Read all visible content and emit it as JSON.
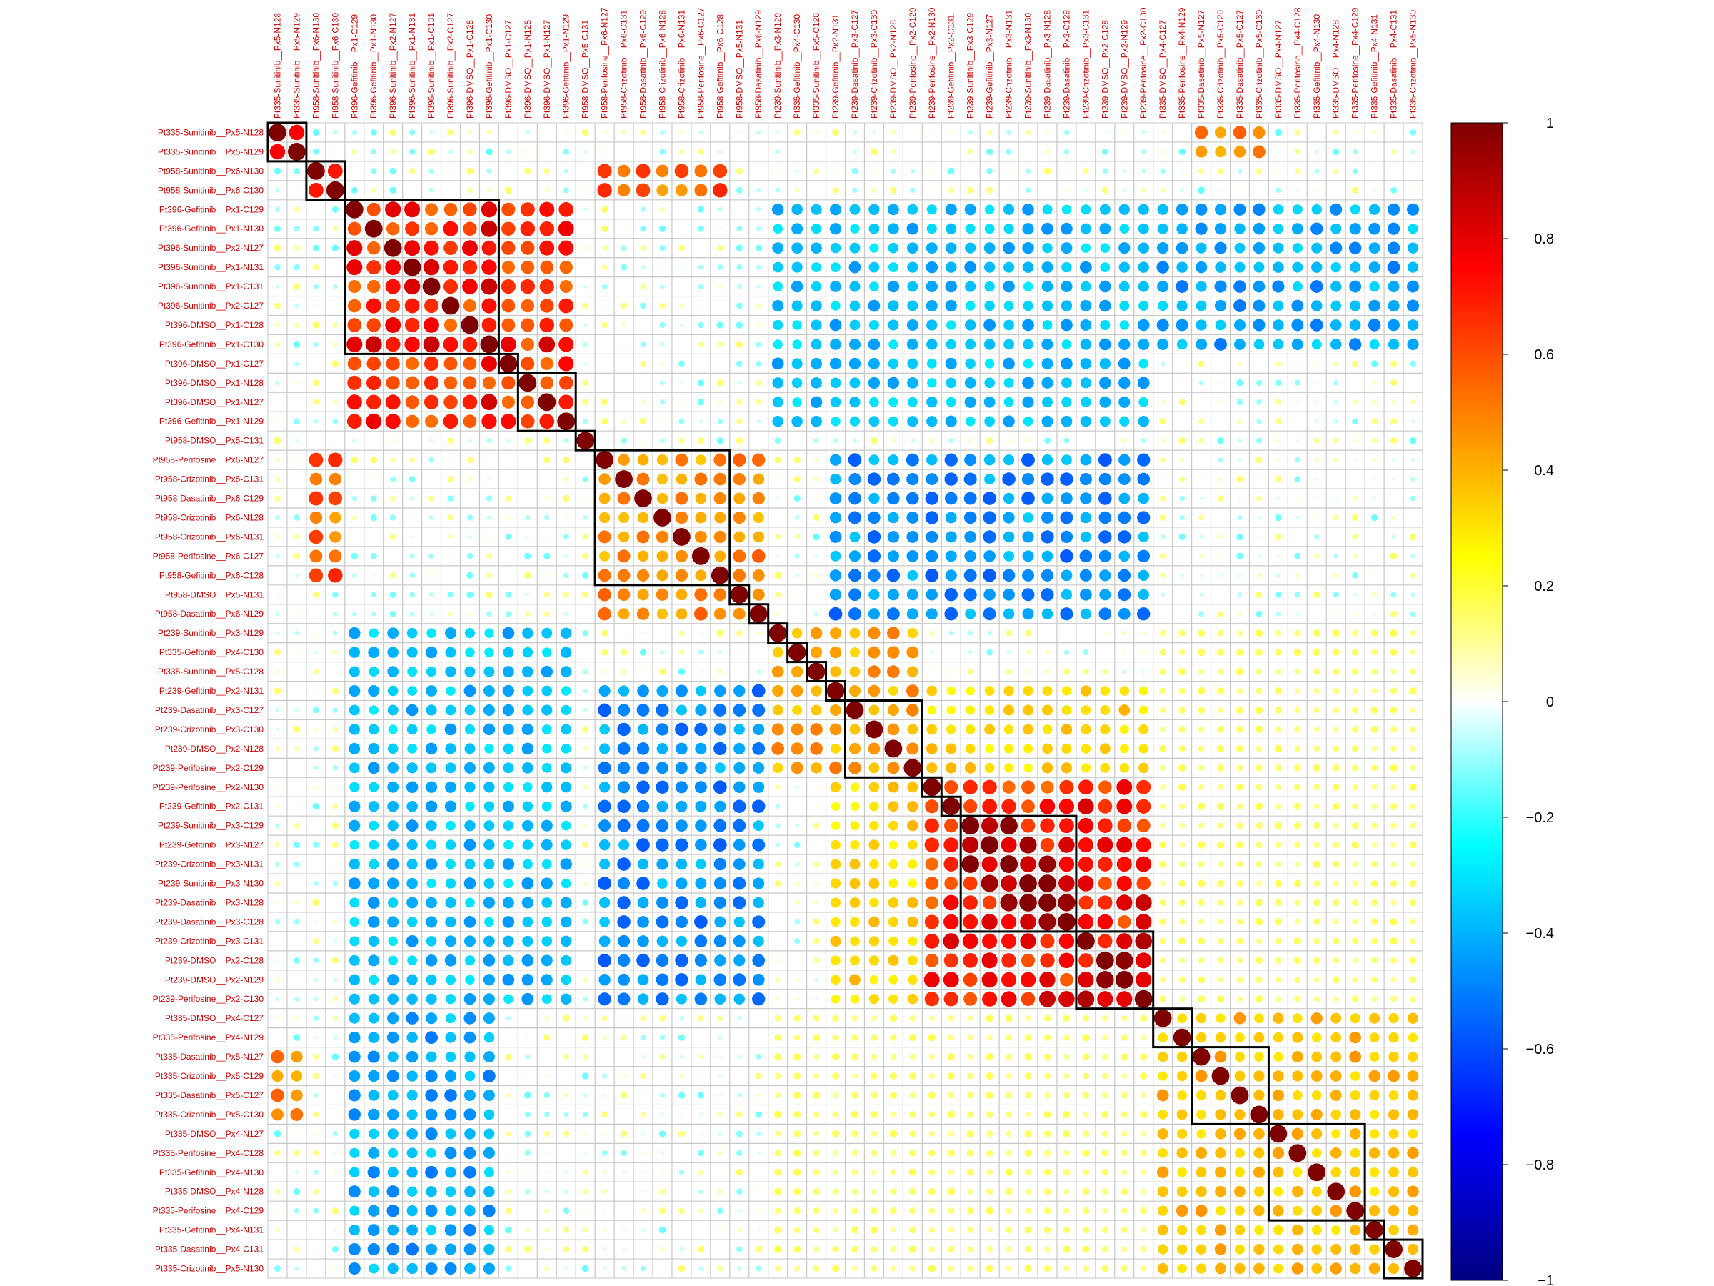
{
  "chart_data": {
    "type": "heatmap",
    "title": "",
    "labels": [
      "Pt335-Sunitinib__Px5-N128",
      "Pt335-Sunitinib__Px5-N129",
      "Pt958-Sunitinib__Px6-N130",
      "Pt958-Sunitinib__Px6-C130",
      "Pt396-Gefitinib__Px1-C129",
      "Pt396-Gefitinib__Px1-N130",
      "Pt396-Sunitinib__Px2-N127",
      "Pt396-Sunitinib__Px1-N131",
      "Pt396-Sunitinib__Px1-C131",
      "Pt396-Sunitinib__Px2-C127",
      "Pt396-DMSO__Px1-C128",
      "Pt396-Gefitinib__Px1-C130",
      "Pt396-DMSO__Px1-C127",
      "Pt396-DMSO__Px1-N128",
      "Pt396-DMSO__Px1-N127",
      "Pt396-Gefitinib__Px1-N129",
      "Pt958-DMSO__Px5-C131",
      "Pt958-Perifosine__Px6-N127",
      "Pt958-Crizotinib__Px6-C131",
      "Pt958-Dasatinib__Px6-C129",
      "Pt958-Crizotinib__Px6-N128",
      "Pt958-Crizotinib__Px6-N131",
      "Pt958-Perifosine__Px6-C127",
      "Pt958-Gefitinib__Px6-C128",
      "Pt958-DMSO__Px5-N131",
      "Pt958-Dasatinib__Px6-N129",
      "Pt239-Sunitinib__Px3-N129",
      "Pt335-Gefitinib__Px4-C130",
      "Pt335-Sunitinib__Px5-C128",
      "Pt239-Gefitinib__Px2-N131",
      "Pt239-Dasatinib__Px3-C127",
      "Pt239-Crizotinib__Px3-C130",
      "Pt239-DMSO__Px2-N128",
      "Pt239-Perifosine__Px2-C129",
      "Pt239-Perifosine__Px2-N130",
      "Pt239-Gefitinib__Px2-C131",
      "Pt239-Sunitinib__Px3-C129",
      "Pt239-Gefitinib__Px3-N127",
      "Pt239-Crizotinib__Px3-N131",
      "Pt239-Sunitinib__Px3-N130",
      "Pt239-Dasatinib__Px3-N128",
      "Pt239-Dasatinib__Px3-C128",
      "Pt239-Crizotinib__Px3-C131",
      "Pt239-DMSO__Px2-C128",
      "Pt239-DMSO__Px2-N129",
      "Pt239-Perifosine__Px2-C130",
      "Pt335-DMSO__Px4-C127",
      "Pt335-Perifosine__Px4-N129",
      "Pt335-Dasatinib__Px5-N127",
      "Pt335-Crizotinib__Px5-C129",
      "Pt335-Dasatinib__Px5-C127",
      "Pt335-Crizotinib__Px5-C130",
      "Pt335-DMSO__Px4-N127",
      "Pt335-Perifosine__Px4-C128",
      "Pt335-Gefitinib__Px4-N130",
      "Pt335-DMSO__Px4-N128",
      "Pt335-Perifosine__Px4-C129",
      "Pt335-Gefitinib__Px4-N131",
      "Pt335-Dasatinib__Px4-C131",
      "Pt335-Crizotinib__Px5-N130"
    ],
    "clusters": [
      {
        "start": 0,
        "end": 1
      },
      {
        "start": 2,
        "end": 3
      },
      {
        "start": 4,
        "end": 11
      },
      {
        "start": 12,
        "end": 12
      },
      {
        "start": 13,
        "end": 15
      },
      {
        "start": 16,
        "end": 16
      },
      {
        "start": 17,
        "end": 23
      },
      {
        "start": 24,
        "end": 24
      },
      {
        "start": 25,
        "end": 25
      },
      {
        "start": 26,
        "end": 26
      },
      {
        "start": 27,
        "end": 27
      },
      {
        "start": 28,
        "end": 28
      },
      {
        "start": 29,
        "end": 29
      },
      {
        "start": 30,
        "end": 33
      },
      {
        "start": 34,
        "end": 34
      },
      {
        "start": 35,
        "end": 35
      },
      {
        "start": 36,
        "end": 41
      },
      {
        "start": 42,
        "end": 45
      },
      {
        "start": 46,
        "end": 47
      },
      {
        "start": 48,
        "end": 51
      },
      {
        "start": 52,
        "end": 56
      },
      {
        "start": 57,
        "end": 57
      },
      {
        "start": 58,
        "end": 59
      }
    ],
    "blocks": [
      {
        "a": 0,
        "b": 1,
        "value": 0.97
      },
      {
        "a": 2,
        "b": 3,
        "value": 0.85
      },
      {
        "a": 4,
        "b": 11,
        "value": 0.85
      },
      {
        "a": 12,
        "b": 15,
        "value": 0.7
      },
      {
        "a": 4,
        "b": 15,
        "value": 0.75
      },
      {
        "a": 16,
        "b": 16,
        "value": 1.0
      },
      {
        "a": 17,
        "b": 23,
        "value": 0.82
      },
      {
        "a": 17,
        "b": 25,
        "value": 0.5
      },
      {
        "a": 2,
        "b": 3,
        "c": 17,
        "d": 23,
        "value": 0.6
      },
      {
        "a": 26,
        "b": 28,
        "value": 0.7
      },
      {
        "a": 29,
        "b": 33,
        "value": 0.75
      },
      {
        "a": 26,
        "b": 33,
        "value": 0.45
      },
      {
        "a": 34,
        "b": 45,
        "value": 0.75
      },
      {
        "a": 36,
        "b": 41,
        "value": 0.88
      },
      {
        "a": 42,
        "b": 45,
        "value": 0.86
      },
      {
        "a": 29,
        "b": 33,
        "c": 34,
        "d": 45,
        "value": 0.35
      },
      {
        "a": 46,
        "b": 47,
        "value": 0.9
      },
      {
        "a": 48,
        "b": 51,
        "value": 0.82
      },
      {
        "a": 52,
        "b": 57,
        "value": 0.7
      },
      {
        "a": 58,
        "b": 59,
        "value": 0.8
      },
      {
        "a": 46,
        "b": 59,
        "value": 0.4
      },
      {
        "a": 0,
        "b": 1,
        "c": 48,
        "d": 51,
        "value": 0.55
      },
      {
        "a": 4,
        "b": 15,
        "c": 26,
        "d": 45,
        "value": -0.4
      },
      {
        "a": 4,
        "b": 11,
        "c": 46,
        "d": 59,
        "value": -0.45
      },
      {
        "a": 17,
        "b": 25,
        "c": 29,
        "d": 45,
        "value": -0.5
      },
      {
        "a": 26,
        "b": 45,
        "c": 46,
        "d": 59,
        "value": 0.15
      }
    ],
    "legend": {
      "position": "right",
      "min": -1,
      "max": 1,
      "ticks": [
        "1",
        "0.8",
        "0.6",
        "0.4",
        "0.2",
        "0",
        "−0.2",
        "−0.4",
        "−0.6",
        "−0.8",
        "−1"
      ]
    },
    "colors": {
      "label_text": "#cc0000",
      "grid": "#c8c8c8",
      "cluster_box": "#000000",
      "scale": [
        "#00007f",
        "#0000ff",
        "#007fff",
        "#00ffff",
        "#ffffff",
        "#ffff00",
        "#ff7f00",
        "#ff0000",
        "#7f0000"
      ]
    },
    "grid": true
  }
}
